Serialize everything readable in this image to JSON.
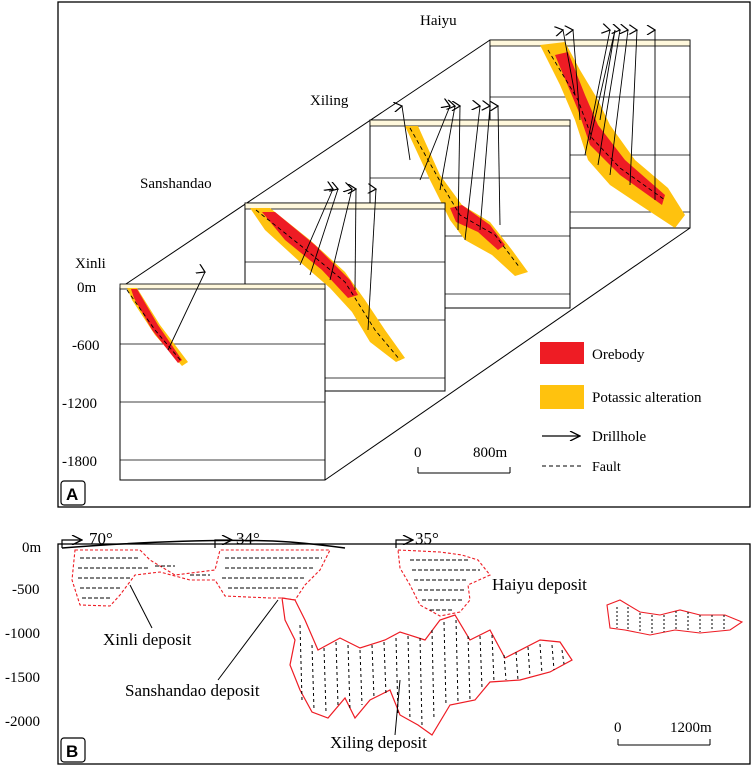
{
  "panelA": {
    "tag": "A",
    "sections": {
      "xinli": "Xinli",
      "sanshandao": "Sanshandao",
      "xiling": "Xiling",
      "haiyu": "Haiyu"
    },
    "depth_labels": [
      "0m",
      "-600",
      "-1200",
      "-1800"
    ],
    "legend": {
      "orebody": "Orebody",
      "potassic": "Potassic alteration",
      "drillhole": "Drillhole",
      "fault": "Fault"
    },
    "scale": {
      "zero": "0",
      "length": "800m"
    },
    "colors": {
      "orebody": "#ee1c24",
      "potassic": "#ffc20e",
      "surface": "#fff8dc"
    }
  },
  "panelB": {
    "tag": "B",
    "depth_labels": [
      "0m",
      "-500",
      "-1000",
      "-1500",
      "-2000"
    ],
    "dips": [
      "70°",
      "34°",
      "35°"
    ],
    "deposits": {
      "xinli": "Xinli deposit",
      "sanshandao": "Sanshandao deposit",
      "haiyu": "Haiyu deposit",
      "xiling": "Xiling deposit"
    },
    "scale": {
      "zero": "0",
      "length": "1200m"
    },
    "colors": {
      "outline": "#ee1c24"
    }
  }
}
